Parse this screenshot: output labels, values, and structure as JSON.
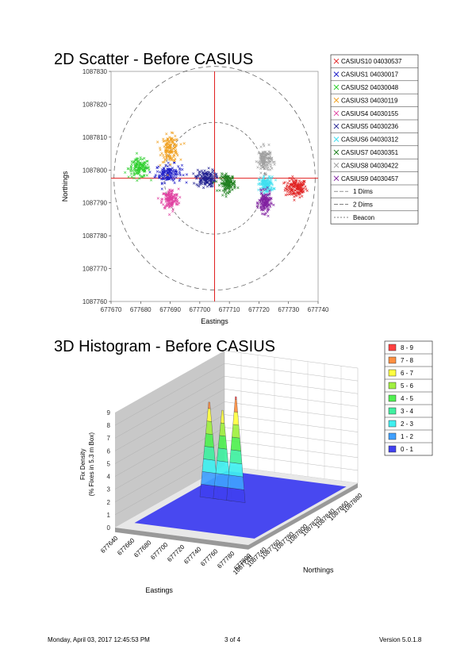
{
  "page": {
    "footer": {
      "datetime": "Monday, April 03, 2017 12:45:53 PM",
      "page_number": "3 of 4",
      "version": "Version 5.0.1.8"
    }
  },
  "chart_data": [
    {
      "type": "scatter",
      "title": "2D Scatter - Before CASIUS",
      "xlabel": "Eastings",
      "ylabel": "Northings",
      "xlim": [
        677670,
        677740
      ],
      "ylim": [
        1087760,
        1087830
      ],
      "xticks": [
        677670,
        677680,
        677690,
        677700,
        677710,
        677720,
        677730,
        677740
      ],
      "yticks": [
        1087760,
        1087770,
        1087780,
        1087790,
        1087800,
        1087810,
        1087820,
        1087830
      ],
      "beacon": {
        "x": 677705,
        "y": 1087797.5
      },
      "rings": [
        {
          "name": "1 Dims",
          "radius": 17
        },
        {
          "name": "2 Dims",
          "radius": 34
        }
      ],
      "legend_position": "right",
      "series": [
        {
          "name": "CASIUS10 04030537",
          "color": "#e02020",
          "center": [
            677732.5,
            1087794.5
          ],
          "spread": [
            1.8,
            1.4
          ]
        },
        {
          "name": "CASIUS1 04030017",
          "color": "#2020c8",
          "center": [
            677689.5,
            1087799.0
          ],
          "spread": [
            2.2,
            1.4
          ]
        },
        {
          "name": "CASIUS2 04030048",
          "color": "#30d030",
          "center": [
            677679.5,
            1087800.5
          ],
          "spread": [
            1.8,
            1.4
          ]
        },
        {
          "name": "CASIUS3 04030119",
          "color": "#f0a020",
          "center": [
            677690.0,
            1087806.5
          ],
          "spread": [
            1.5,
            2.0
          ]
        },
        {
          "name": "CASIUS4 04030155",
          "color": "#e040a0",
          "center": [
            677690.0,
            1087791.0
          ],
          "spread": [
            1.4,
            1.6
          ]
        },
        {
          "name": "CASIUS5 04030236",
          "color": "#202090",
          "center": [
            677702.0,
            1087797.5
          ],
          "spread": [
            1.6,
            1.3
          ]
        },
        {
          "name": "CASIUS6 04030312",
          "color": "#40e0f0",
          "center": [
            677722.5,
            1087795.5
          ],
          "spread": [
            1.2,
            1.2
          ]
        },
        {
          "name": "CASIUS7 04030351",
          "color": "#208020",
          "center": [
            677709.5,
            1087796.0
          ],
          "spread": [
            1.3,
            1.3
          ]
        },
        {
          "name": "CASIUS8 04030422",
          "color": "#a0a0a0",
          "center": [
            677722.0,
            1087803.0
          ],
          "spread": [
            1.2,
            1.8
          ]
        },
        {
          "name": "CASIUS9 04030457",
          "color": "#8020a0",
          "center": [
            677722.0,
            1087790.0
          ],
          "spread": [
            1.0,
            1.6
          ]
        }
      ],
      "legend_extra": [
        {
          "name": "1 Dims",
          "style": "line"
        },
        {
          "name": "2 Dims",
          "style": "line"
        },
        {
          "name": "Beacon",
          "style": "dashed"
        }
      ]
    },
    {
      "type": "heatmap",
      "subtype": "3d-histogram",
      "title": "3D Histogram - Before CASIUS",
      "xlabel": "Eastings",
      "ylabel": "Northings",
      "zlabel": "Fix Density",
      "zlabel2": "(% Fixes in 5.3 m Box)",
      "zticks": [
        "0",
        "1",
        "2",
        "3",
        "4",
        "5",
        "6",
        "7",
        "8",
        "9"
      ],
      "xticks": [
        "677640",
        "677660",
        "677680",
        "677700",
        "677720",
        "677740",
        "677760",
        "677780",
        "677800"
      ],
      "yticks": [
        "1087720",
        "1087740",
        "1087760",
        "1087780",
        "1087800",
        "1087820",
        "1087840",
        "1087860",
        "1087880"
      ],
      "peaks": [
        {
          "x": 0.35,
          "z": 7.5
        },
        {
          "x": 0.55,
          "z": 7.0
        },
        {
          "x": 0.75,
          "z": 8.2
        }
      ],
      "legend": [
        {
          "label": "8 - 9",
          "color": "#ff4040"
        },
        {
          "label": "7 - 8",
          "color": "#ff9040"
        },
        {
          "label": "6 - 7",
          "color": "#ffff40"
        },
        {
          "label": "5 - 6",
          "color": "#a0f040"
        },
        {
          "label": "4 - 5",
          "color": "#50f050"
        },
        {
          "label": "3 - 4",
          "color": "#40f0a0"
        },
        {
          "label": "2 - 3",
          "color": "#40f0f0"
        },
        {
          "label": "1 - 2",
          "color": "#40a0ff"
        },
        {
          "label": "0 - 1",
          "color": "#4040f0"
        }
      ]
    }
  ]
}
